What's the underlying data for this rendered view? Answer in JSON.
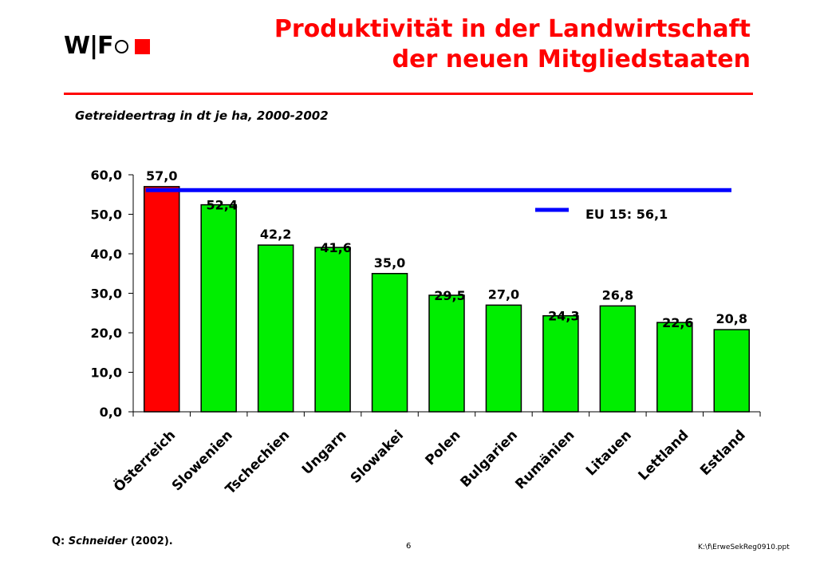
{
  "header": {
    "logo_text": "W|F",
    "title_line1": "Produktivität in der Landwirtschaft",
    "title_line2": "der neuen Mitgliedstaaten"
  },
  "subtitle": "Getreideertrag in dt je ha, 2000-2002",
  "footer": {
    "source_prefix": "Q: ",
    "source_author": "Schneider",
    "source_year": " (2002).",
    "page_number": "6",
    "file_path": "K:\\f\\ErweSekReg0910.ppt"
  },
  "colors": {
    "accent": "#ff0000",
    "bar_highlight": "#ff0000",
    "bar_default": "#00ee00",
    "reference_line": "#0000ff"
  },
  "chart_data": {
    "type": "bar",
    "categories": [
      "Österreich",
      "Slowenien",
      "Tschechien",
      "Ungarn",
      "Slowakei",
      "Polen",
      "Bulgarien",
      "Rumänien",
      "Litauen",
      "Lettland",
      "Estland"
    ],
    "values": [
      57.0,
      52.4,
      42.2,
      41.6,
      35.0,
      29.5,
      27.0,
      24.3,
      26.8,
      22.6,
      20.8
    ],
    "value_labels": [
      "57,0",
      "52,4",
      "42,2",
      "41,6",
      "35,0",
      "29,5",
      "27,0",
      "24,3",
      "26,8",
      "22,6",
      "20,8"
    ],
    "highlight_index": 0,
    "ylim": [
      0,
      60
    ],
    "yticks": [
      0,
      10,
      20,
      30,
      40,
      50,
      60
    ],
    "ytick_labels": [
      "0,0",
      "10,0",
      "20,0",
      "30,0",
      "40,0",
      "50,0",
      "60,0"
    ],
    "reference_line": {
      "value": 56.1,
      "label": "EU 15: 56,1"
    },
    "xlabel": "",
    "ylabel": "",
    "grid": false,
    "legend_position": "top-right"
  }
}
